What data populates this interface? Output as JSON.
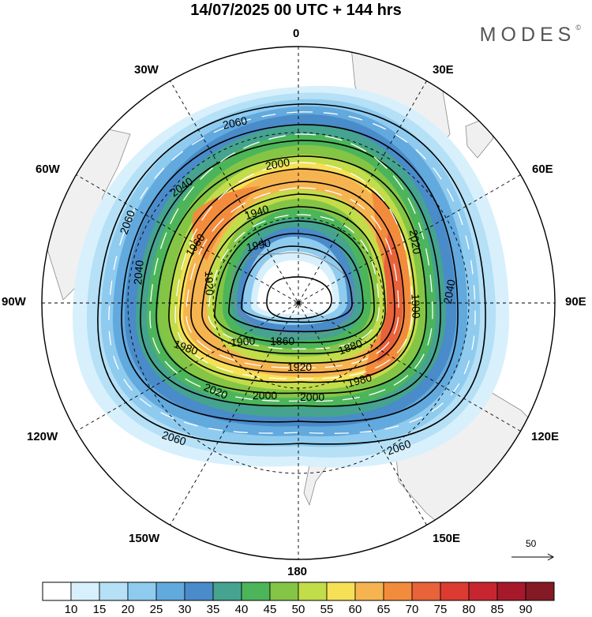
{
  "title": "14/07/2025  00 UTC  + 144 hrs",
  "brand": "MODES",
  "brand_mark": "©",
  "longitude_labels": {
    "lon_0": "0",
    "lon_30e": "30E",
    "lon_60e": "60E",
    "lon_90e": "90E",
    "lon_120e": "120E",
    "lon_150e": "150E",
    "lon_180": "180",
    "lon_150w": "150W",
    "lon_120w": "120W",
    "lon_90w": "90W",
    "lon_60w": "60W",
    "lon_30w": "30W"
  },
  "contour_labels": [
    "2060",
    "2000",
    "2040",
    "1940",
    "1960",
    "2020",
    "1990",
    "1920",
    "2040",
    "1900",
    "1860",
    "1880",
    "1920",
    "1980",
    "2000",
    "2000",
    "2020",
    "2060",
    "2060",
    "2060",
    "2040",
    "1980",
    "1900"
  ],
  "vector_reference": {
    "value": "50"
  },
  "colorbar": {
    "ticks": [
      "10",
      "15",
      "20",
      "25",
      "30",
      "35",
      "40",
      "45",
      "50",
      "55",
      "60",
      "65",
      "70",
      "75",
      "80",
      "85",
      "90"
    ],
    "colors": [
      "#ffffff",
      "#d7f0fc",
      "#b5e0f6",
      "#8fcbee",
      "#62a9de",
      "#4a8bc9",
      "#45a38f",
      "#4cb55a",
      "#84c546",
      "#c3dc4a",
      "#f6e055",
      "#f6b450",
      "#f28c3c",
      "#e8623a",
      "#dc3b32",
      "#c72630",
      "#a6192a",
      "#841a24"
    ]
  },
  "colors": {
    "land": "#f0f0f0",
    "coast": "#8a8a8a",
    "contour": "#000000",
    "vector": "#ffffff"
  }
}
